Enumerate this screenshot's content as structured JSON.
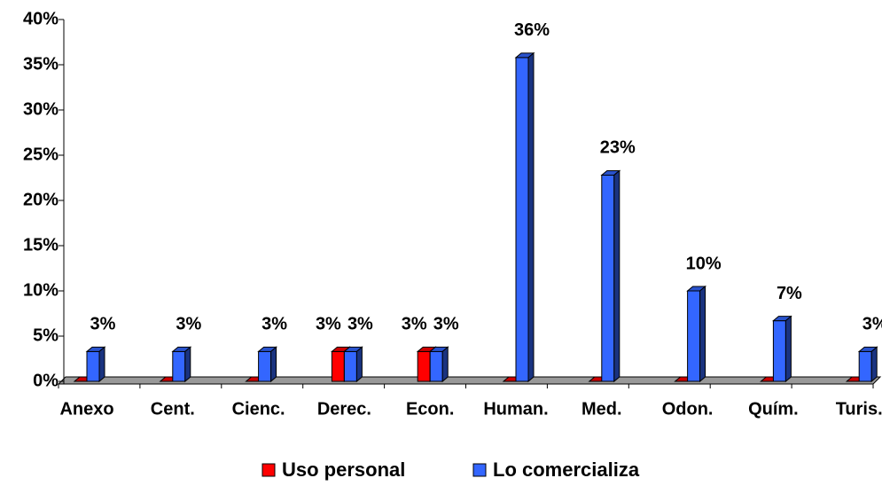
{
  "chart_data": {
    "type": "bar3d",
    "categories": [
      "Anexo",
      "Cent.",
      "Cienc.",
      "Derec.",
      "Econ.",
      "Human.",
      "Med.",
      "Odon.",
      "Quím.",
      "Turis."
    ],
    "series": [
      {
        "name": "Uso personal",
        "color": "#ff0000",
        "values": [
          0,
          0,
          0,
          3.3,
          3.3,
          0,
          0,
          0,
          0,
          0
        ],
        "value_labels": [
          null,
          null,
          null,
          "3%",
          "3%",
          null,
          null,
          null,
          null,
          null
        ]
      },
      {
        "name": "Lo comercializa",
        "color": "#3366ff",
        "values": [
          3.3,
          3.3,
          3.3,
          3.3,
          3.3,
          35.8,
          22.8,
          10,
          6.7,
          3.3
        ],
        "value_labels": [
          "3%",
          "3%",
          "3%",
          "3%",
          "3%",
          "36%",
          "23%",
          "10%",
          "7%",
          "3%"
        ]
      }
    ],
    "ylim": [
      0,
      40
    ],
    "yticks": [
      {
        "value": 0,
        "label": "0%"
      },
      {
        "value": 5,
        "label": "5%"
      },
      {
        "value": 10,
        "label": "10%"
      },
      {
        "value": 15,
        "label": "15%"
      },
      {
        "value": 20,
        "label": "20%"
      },
      {
        "value": 25,
        "label": "25%"
      },
      {
        "value": 30,
        "label": "30%"
      },
      {
        "value": 35,
        "label": "35%"
      },
      {
        "value": 40,
        "label": "40%"
      }
    ],
    "legend": "bottom"
  }
}
